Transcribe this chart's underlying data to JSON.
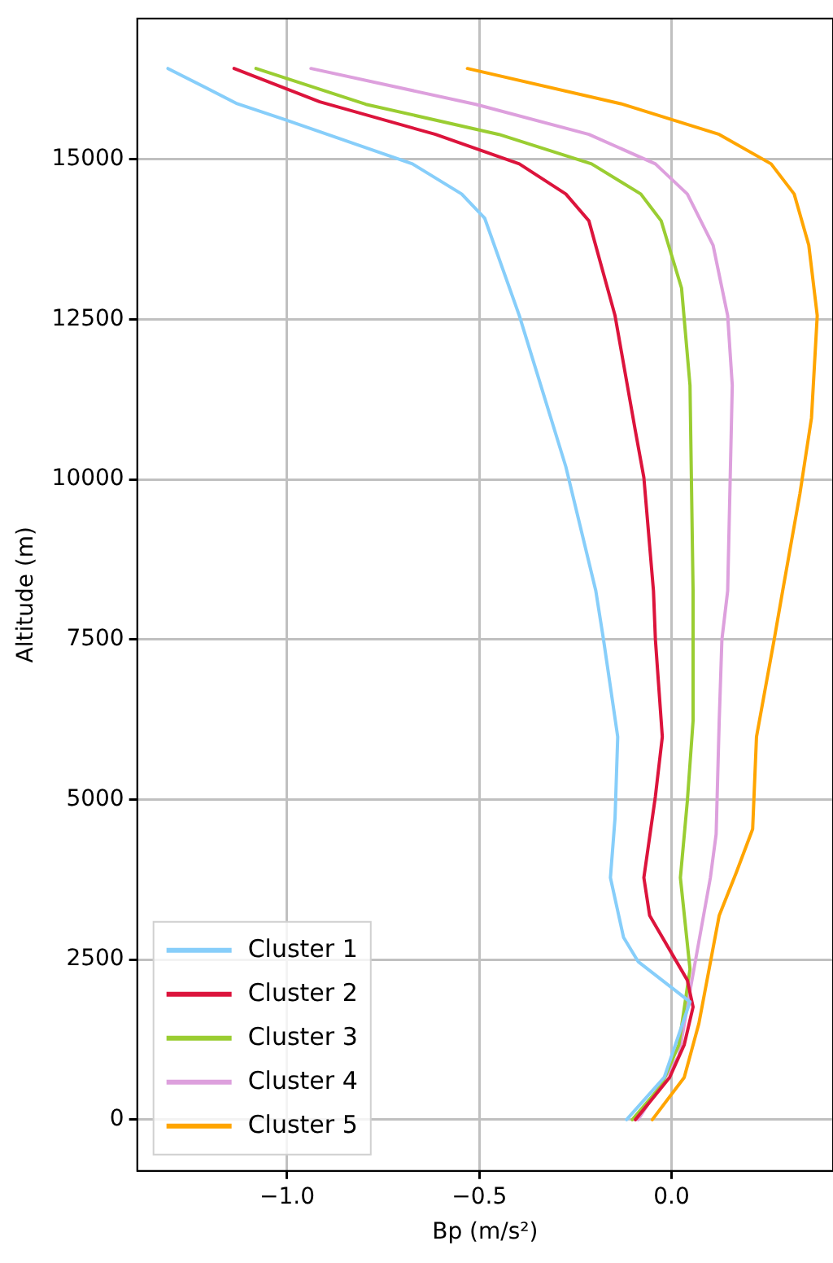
{
  "chart_data": {
    "type": "line",
    "xlabel": "Bp (m/s²)",
    "ylabel": "Altitude (m)",
    "xlim": [
      -1.39,
      0.42
    ],
    "ylim": [
      -800,
      17200
    ],
    "xticks": [
      {
        "value": -1.0,
        "label": "−1.0"
      },
      {
        "value": -0.5,
        "label": "−0.5"
      },
      {
        "value": 0.0,
        "label": "0.0"
      }
    ],
    "yticks": [
      0,
      2500,
      5000,
      7500,
      10000,
      12500,
      15000
    ],
    "grid": true,
    "legend": "bottom left",
    "marker": "none",
    "line_style": "solid",
    "series": [
      {
        "name": "Cluster 1",
        "color": "#87cefa",
        "x": [
          -1.31,
          -1.13,
          -1.005,
          -0.674,
          -0.546,
          -0.486,
          -0.396,
          -0.275,
          -0.197,
          -0.177,
          -0.14,
          -0.147,
          -0.159,
          -0.125,
          -0.087,
          0.048,
          -0.019,
          -0.117
        ],
        "values": [
          16420,
          15870,
          15620,
          14930,
          14460,
          14080,
          12560,
          10200,
          8260,
          7500,
          5980,
          4710,
          3780,
          2850,
          2470,
          1840,
          660,
          0
        ]
      },
      {
        "name": "Cluster 2",
        "color": "#dc143c",
        "x": [
          -1.138,
          -0.915,
          -0.614,
          -0.396,
          -0.275,
          -0.215,
          -0.147,
          -0.095,
          -0.072,
          -0.047,
          -0.042,
          -0.024,
          -0.042,
          -0.072,
          -0.057,
          0.041,
          0.056,
          0.033,
          -0.005,
          -0.094
        ],
        "values": [
          16420,
          15900,
          15390,
          14930,
          14460,
          14040,
          12560,
          10790,
          10030,
          8260,
          7500,
          5980,
          5050,
          3780,
          3190,
          2180,
          1760,
          1170,
          660,
          0
        ]
      },
      {
        "name": "Cluster 3",
        "color": "#9acd32",
        "x": [
          -1.081,
          -0.795,
          -0.449,
          -0.208,
          -0.08,
          -0.027,
          0.026,
          0.048,
          0.056,
          0.056,
          0.041,
          0.023,
          0.048,
          0.019,
          -0.027,
          -0.102
        ],
        "values": [
          16420,
          15860,
          15390,
          14930,
          14460,
          14040,
          12990,
          11470,
          8260,
          6230,
          4970,
          3780,
          2350,
          1170,
          530,
          0
        ]
      },
      {
        "name": "Cluster 4",
        "color": "#dda0dd",
        "x": [
          -0.938,
          -0.509,
          -0.215,
          -0.042,
          0.041,
          0.108,
          0.146,
          0.158,
          0.146,
          0.131,
          0.124,
          0.116,
          0.101,
          0.048,
          0.019,
          -0.087
        ],
        "values": [
          16420,
          15860,
          15390,
          14930,
          14460,
          13660,
          12560,
          11470,
          8260,
          7500,
          6230,
          4460,
          3780,
          2010,
          1000,
          0
        ]
      },
      {
        "name": "Cluster 5",
        "color": "#ffa500",
        "x": [
          -0.531,
          -0.132,
          0.124,
          0.259,
          0.319,
          0.357,
          0.379,
          0.364,
          0.334,
          0.289,
          0.267,
          0.221,
          0.211,
          0.169,
          0.124,
          0.071,
          0.033,
          -0.05
        ],
        "values": [
          16420,
          15870,
          15390,
          14930,
          14460,
          13660,
          12560,
          10960,
          9780,
          8260,
          7500,
          5980,
          4540,
          3870,
          3190,
          1500,
          660,
          0
        ]
      }
    ]
  }
}
